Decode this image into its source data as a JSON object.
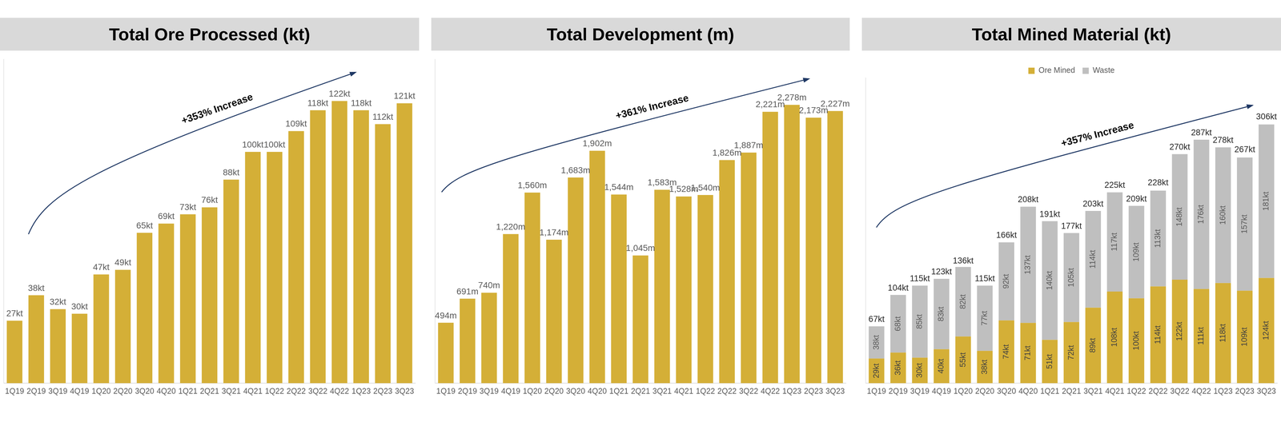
{
  "chart_data": [
    {
      "type": "bar",
      "title": "Total Ore Processed (kt)",
      "annotations": [
        "+353% Increase"
      ],
      "categories": [
        "1Q19",
        "2Q19",
        "3Q19",
        "4Q19",
        "1Q20",
        "2Q20",
        "3Q20",
        "4Q20",
        "1Q21",
        "2Q21",
        "3Q21",
        "4Q21",
        "1Q22",
        "2Q22",
        "3Q22",
        "4Q22",
        "1Q23",
        "2Q23",
        "3Q23"
      ],
      "values": [
        27,
        38,
        32,
        30,
        47,
        49,
        65,
        69,
        73,
        76,
        88,
        100,
        100,
        109,
        118,
        122,
        118,
        112,
        121
      ],
      "value_labels": [
        "27kt",
        "38kt",
        "32kt",
        "30kt",
        "47kt",
        "49kt",
        "65kt",
        "69kt",
        "73kt",
        "76kt",
        "88kt",
        "100kt",
        "100kt",
        "109kt",
        "118kt",
        "122kt",
        "118kt",
        "112kt",
        "121kt"
      ],
      "color": "#D4AF37",
      "ylim": [
        0,
        140
      ],
      "grid": false,
      "data_labels": true,
      "tick_labels": "x"
    },
    {
      "type": "bar",
      "title": "Total Development (m)",
      "annotations": [
        "+361% Increase"
      ],
      "categories": [
        "1Q19",
        "2Q19",
        "3Q19",
        "4Q19",
        "1Q20",
        "2Q20",
        "3Q20",
        "4Q20",
        "1Q21",
        "2Q21",
        "3Q21",
        "4Q21",
        "1Q22",
        "2Q22",
        "3Q22",
        "4Q22",
        "1Q23",
        "2Q23",
        "3Q23"
      ],
      "values": [
        494,
        691,
        740,
        1220,
        1560,
        1174,
        1683,
        1902,
        1544,
        1045,
        1583,
        1528,
        1540,
        1826,
        1887,
        2221,
        2278,
        2173,
        2227
      ],
      "value_labels": [
        "494m",
        "691m",
        "740m",
        "1,220m",
        "1,560m",
        "1,174m",
        "1,683m",
        "1,902m",
        "1,544m",
        "1,045m",
        "1,583m",
        "1,528m",
        "1,540m",
        "1,826m",
        "1,887m",
        "2,221m",
        "2,278m",
        "2,173m",
        "2,227m"
      ],
      "color": "#D4AF37",
      "ylim": [
        0,
        2650
      ],
      "grid": false,
      "data_labels": true,
      "tick_labels": "x"
    },
    {
      "type": "bar",
      "title": "Total Mined Material (kt)",
      "annotations": [
        "+357% Increase"
      ],
      "stacked": true,
      "categories": [
        "1Q19",
        "2Q19",
        "3Q19",
        "4Q19",
        "1Q20",
        "2Q20",
        "3Q20",
        "4Q20",
        "1Q21",
        "2Q21",
        "3Q21",
        "4Q21",
        "1Q22",
        "2Q22",
        "3Q22",
        "4Q22",
        "1Q23",
        "2Q23",
        "3Q23"
      ],
      "series": [
        {
          "name": "Ore Mined",
          "color": "#D4AF37",
          "values": [
            29,
            36,
            30,
            40,
            55,
            38,
            74,
            71,
            51,
            72,
            89,
            108,
            100,
            114,
            122,
            111,
            118,
            109,
            124
          ],
          "value_labels": [
            "29kt",
            "36kt",
            "30kt",
            "40kt",
            "55kt",
            "38kt",
            "74kt",
            "71kt",
            "51kt",
            "72kt",
            "89kt",
            "108kt",
            "100kt",
            "114kt",
            "122kt",
            "111kt",
            "118kt",
            "109kt",
            "124kt"
          ]
        },
        {
          "name": "Waste",
          "color": "#BFBFBF",
          "values": [
            38,
            68,
            85,
            83,
            82,
            77,
            92,
            137,
            140,
            105,
            114,
            117,
            109,
            113,
            148,
            176,
            160,
            157,
            181
          ],
          "value_labels": [
            "38kt",
            "68kt",
            "85kt",
            "83kt",
            "82kt",
            "77kt",
            "92kt",
            "137kt",
            "140kt",
            "105kt",
            "114kt",
            "117kt",
            "109kt",
            "113kt",
            "148kt",
            "176kt",
            "160kt",
            "157kt",
            "181kt"
          ]
        }
      ],
      "totals": [
        67,
        104,
        115,
        123,
        136,
        115,
        166,
        208,
        191,
        177,
        203,
        225,
        209,
        228,
        270,
        287,
        278,
        267,
        306
      ],
      "total_labels": [
        "67kt",
        "104kt",
        "115kt",
        "123kt",
        "136kt",
        "115kt",
        "166kt",
        "208kt",
        "191kt",
        "177kt",
        "203kt",
        "225kt",
        "209kt",
        "228kt",
        "270kt",
        "287kt",
        "278kt",
        "267kt",
        "306kt"
      ],
      "ylim": [
        0,
        360
      ],
      "grid": false,
      "data_labels": true,
      "tick_labels": "x",
      "legend": "top"
    }
  ]
}
